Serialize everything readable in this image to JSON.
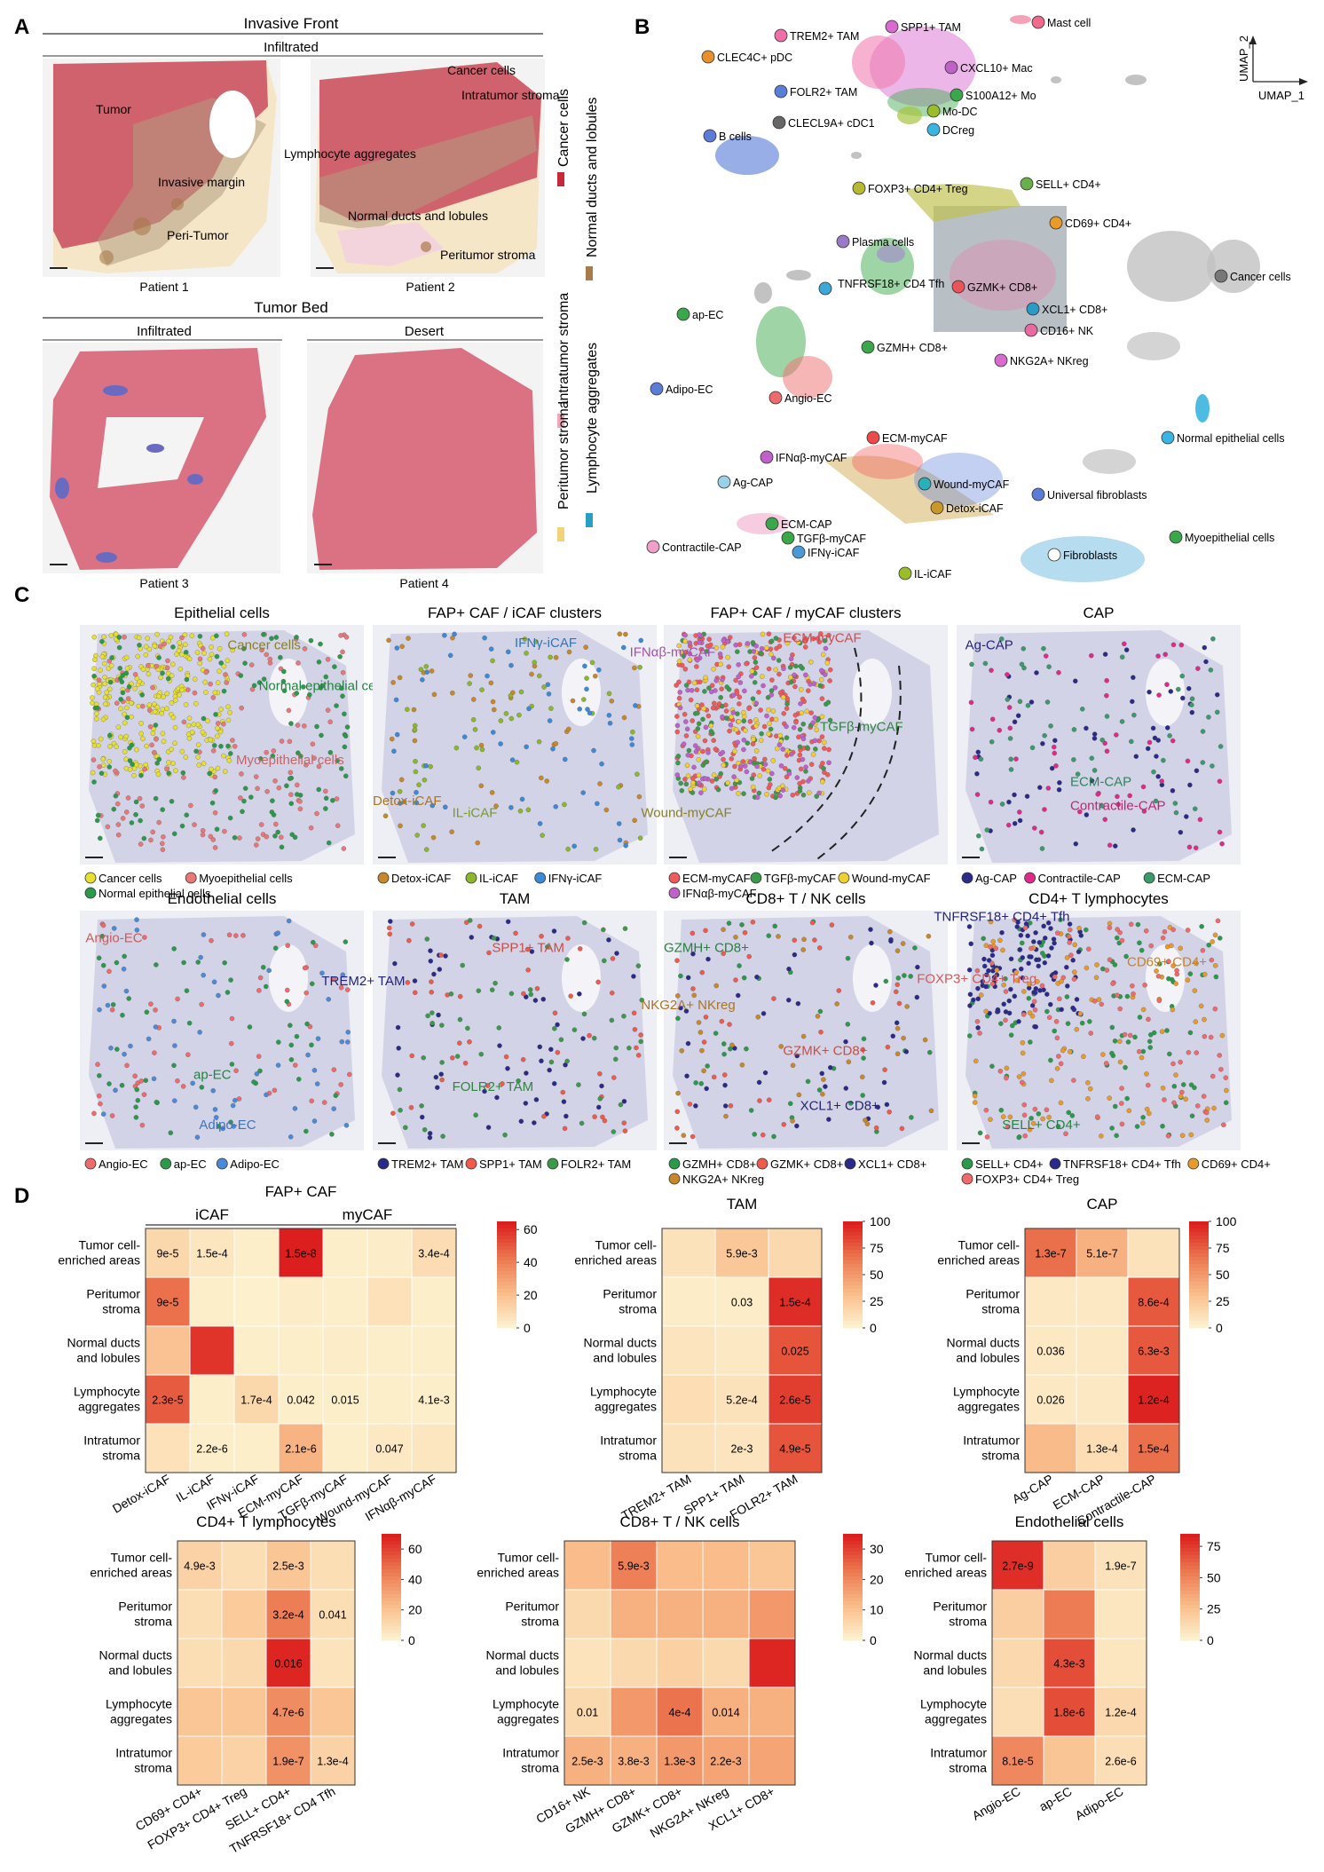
{
  "panel_letters": [
    "A",
    "B",
    "C",
    "D"
  ],
  "panelA": {
    "invasive_front": "Invasive Front",
    "infiltrated": "Infiltrated",
    "tumor_bed": "Tumor Bed",
    "tb_infiltrated": "Infiltrated",
    "desert": "Desert",
    "patients": [
      "Patient 1",
      "Patient 2",
      "Patient 3",
      "Patient 4"
    ],
    "annotations": [
      "Tumor",
      "Invasive margin",
      "Peri-Tumor",
      "Cancer cells",
      "Intratumor stroma",
      "Lymphocyte aggregates",
      "Normal ducts and lobules",
      "Peritumor stroma"
    ],
    "legend": [
      {
        "label": "Cancer cells",
        "color": "#c62a3a"
      },
      {
        "label": "Normal ducts and lobules",
        "color": "#a97a4b"
      },
      {
        "label": "Intratumor stroma",
        "color": "#f0a8b4"
      },
      {
        "label": "Lymphocyte aggregates",
        "color": "#2a9fc6"
      },
      {
        "label": "Peritumor stroma",
        "color": "#f2d27a"
      }
    ]
  },
  "panelB": {
    "axis_x": "UMAP_1",
    "axis_y": "UMAP_2",
    "labels": [
      {
        "text": "TREM2+ TAM",
        "color": "#ef6fa8"
      },
      {
        "text": "SPP1+ TAM",
        "color": "#d86ad0"
      },
      {
        "text": "Mast cell",
        "color": "#f06a8c"
      },
      {
        "text": "CLEC4C+ pDC",
        "color": "#e8902c"
      },
      {
        "text": "CXCL10+ Mac",
        "color": "#c061c9"
      },
      {
        "text": "FOLR2+ TAM",
        "color": "#5a7fd6"
      },
      {
        "text": "S100A12+ Mo",
        "color": "#3aa84a"
      },
      {
        "text": "Mo-DC",
        "color": "#9bbd2a"
      },
      {
        "text": "CLECL9A+ cDC1",
        "color": "#666666"
      },
      {
        "text": "DCreg",
        "color": "#3ab4e0"
      },
      {
        "text": "B cells",
        "color": "#5b7dd8"
      },
      {
        "text": "FOXP3+ CD4+ Treg",
        "color": "#b8b832"
      },
      {
        "text": "SELL+ CD4+",
        "color": "#6ab04a"
      },
      {
        "text": "CD69+ CD4+",
        "color": "#e89a2a"
      },
      {
        "text": "Plasma cells",
        "color": "#9a7ac8"
      },
      {
        "text": "TNFRSF18+ CD4 Tfh",
        "color": "#3aa8d8"
      },
      {
        "text": "GZMK+ CD8+",
        "color": "#e8545a"
      },
      {
        "text": "XCL1+ CD8+",
        "color": "#2a9ac8"
      },
      {
        "text": "CD16+ NK",
        "color": "#e86aa0"
      },
      {
        "text": "Cancer cells",
        "color": "#777777"
      },
      {
        "text": "ap-EC",
        "color": "#3aa84a"
      },
      {
        "text": "GZMH+ CD8+",
        "color": "#3aa84a"
      },
      {
        "text": "NKG2A+ NKreg",
        "color": "#d86ad0"
      },
      {
        "text": "Adipo-EC",
        "color": "#5b7dd8"
      },
      {
        "text": "Angio-EC",
        "color": "#ef6a6a"
      },
      {
        "text": "Normal epithelial cells",
        "color": "#3ab4e0"
      },
      {
        "text": "ECM-myCAF",
        "color": "#ef4a4a"
      },
      {
        "text": "IFNαβ-myCAF",
        "color": "#c061c9"
      },
      {
        "text": "Wound-myCAF",
        "color": "#2ab0b8"
      },
      {
        "text": "Ag-CAP",
        "color": "#9ad0e8"
      },
      {
        "text": "Universal fibroblasts",
        "color": "#5b7dd8"
      },
      {
        "text": "Detox-iCAF",
        "color": "#c8982a"
      },
      {
        "text": "ECM-CAP",
        "color": "#3aa84a"
      },
      {
        "text": "TGFβ-myCAF",
        "color": "#3aa84a"
      },
      {
        "text": "IFNγ-iCAF",
        "color": "#4a9ad8"
      },
      {
        "text": "Contractile-CAP",
        "color": "#f0a0c8"
      },
      {
        "text": "IL-iCAF",
        "color": "#9bbd2a"
      },
      {
        "text": "Fibroblasts",
        "color": "#ffffff"
      },
      {
        "text": "Myoepithelial cells",
        "color": "#3aa84a"
      }
    ]
  },
  "panelC": {
    "maps": [
      {
        "title": "Epithelial cells",
        "labels": [
          "Cancer cells",
          "Normal epithelial cells",
          "Myoepithelial cells"
        ],
        "legend": [
          {
            "label": "Cancer cells",
            "color": "#e8e030"
          },
          {
            "label": "Myoepithelial cells",
            "color": "#e87878"
          },
          {
            "label": "Normal epithelial cells",
            "color": "#2a9a4a"
          }
        ]
      },
      {
        "title": "FAP+ CAF / iCAF clusters",
        "labels": [
          "IFNγ-iCAF",
          "Detox-iCAF",
          "IL-iCAF"
        ],
        "legend": [
          {
            "label": "Detox-iCAF",
            "color": "#c8882a"
          },
          {
            "label": "IL-iCAF",
            "color": "#8ab82a"
          },
          {
            "label": "IFNγ-iCAF",
            "color": "#3a8ad8"
          }
        ]
      },
      {
        "title": "FAP+ CAF / myCAF clusters",
        "labels": [
          "ECM-myCAF",
          "IFNαβ-myCAF",
          "TGFβ-myCAF",
          "Wound-myCAF"
        ],
        "legend": [
          {
            "label": "ECM-myCAF",
            "color": "#ef5a5a"
          },
          {
            "label": "TGFβ-myCAF",
            "color": "#3a9a4a"
          },
          {
            "label": "Wound-myCAF",
            "color": "#f0d030"
          },
          {
            "label": "IFNαβ-myCAF",
            "color": "#c061c9"
          }
        ]
      },
      {
        "title": "CAP",
        "labels": [
          "Ag-CAP",
          "ECM-CAP",
          "Contractile-CAP"
        ],
        "legend": [
          {
            "label": "Ag-CAP",
            "color": "#2a2a8a"
          },
          {
            "label": "Contractile-CAP",
            "color": "#e02a8a"
          },
          {
            "label": "ECM-CAP",
            "color": "#3a9a6a"
          }
        ]
      },
      {
        "title": "Endothelial cells",
        "labels": [
          "Angio-EC",
          "ap-EC",
          "Adipo-EC"
        ],
        "legend": [
          {
            "label": "Angio-EC",
            "color": "#ef6a6a"
          },
          {
            "label": "ap-EC",
            "color": "#2a9a4a"
          },
          {
            "label": "Adipo-EC",
            "color": "#4a8ad8"
          }
        ]
      },
      {
        "title": "TAM",
        "labels": [
          "TREM2+ TAM",
          "SPP1+ TAM",
          "FOLR2+ TAM"
        ],
        "legend": [
          {
            "label": "TREM2+ TAM",
            "color": "#2a2a8a"
          },
          {
            "label": "SPP1+ TAM",
            "color": "#ef5a4a"
          },
          {
            "label": "FOLR2+ TAM",
            "color": "#3a9a4a"
          }
        ]
      },
      {
        "title": "CD8+ T / NK cells",
        "labels": [
          "GZMH+ CD8+",
          "NKG2A+ NKreg",
          "GZMK+ CD8+",
          "XCL1+ CD8+"
        ],
        "legend": [
          {
            "label": "GZMH+ CD8+",
            "color": "#2a9a4a"
          },
          {
            "label": "GZMK+ CD8+",
            "color": "#ef5a4a"
          },
          {
            "label": "XCL1+ CD8+",
            "color": "#2a2a8a"
          },
          {
            "label": "NKG2A+ NKreg",
            "color": "#c8882a"
          }
        ]
      },
      {
        "title": "CD4+ T lymphocytes",
        "labels": [
          "TNFRSF18+ CD4+ Tfh",
          "FOXP3+ CD4+ Treg",
          "CD69+ CD4+",
          "SELL+ CD4+"
        ],
        "legend": [
          {
            "label": "SELL+ CD4+",
            "color": "#2a9a4a"
          },
          {
            "label": "TNFRSF18+ CD4+ Tfh",
            "color": "#2a2a8a"
          },
          {
            "label": "CD69+ CD4+",
            "color": "#e89a2a"
          },
          {
            "label": "FOXP3+ CD4+ Treg",
            "color": "#ef6a6a"
          }
        ]
      }
    ]
  },
  "chart_data": [
    {
      "type": "heatmap",
      "title": "FAP+ CAF",
      "group_labels": [
        "iCAF",
        "myCAF"
      ],
      "rows": [
        "Tumor cell-enriched areas",
        "Peritumor stroma",
        "Normal ducts and lobules",
        "Lymphocyte aggregates",
        "Intratumor stroma"
      ],
      "columns": [
        "Detox-iCAF",
        "IL-iCAF",
        "IFNγ-iCAF",
        "ECM-myCAF",
        "TGFβ-myCAF",
        "Wound-myCAF",
        "IFNαβ-myCAF"
      ],
      "values": [
        [
          12,
          6,
          3,
          65,
          3,
          4,
          10
        ],
        [
          45,
          3,
          2,
          4,
          3,
          8,
          3
        ],
        [
          20,
          60,
          3,
          3,
          4,
          3,
          3
        ],
        [
          50,
          3,
          12,
          3,
          3,
          3,
          3
        ],
        [
          8,
          3,
          3,
          25,
          3,
          5,
          6
        ]
      ],
      "annotations": [
        [
          "9e-5",
          "1.5e-4",
          "",
          "1.5e-8",
          "",
          "",
          "3.4e-4"
        ],
        [
          "9e-5",
          "",
          "",
          "",
          "",
          "",
          ""
        ],
        [
          "",
          "",
          "",
          "",
          "",
          "",
          ""
        ],
        [
          "2.3e-5",
          "",
          "1.7e-4",
          "0.042",
          "0.015",
          "",
          "4.1e-3"
        ],
        [
          "",
          "2.2e-6",
          "",
          "2.1e-6",
          "",
          "0.047",
          ""
        ]
      ],
      "scale_ticks": [
        0,
        20,
        40,
        60
      ],
      "scale_max": 65
    },
    {
      "type": "heatmap",
      "title": "TAM",
      "rows": [
        "Tumor cell-enriched areas",
        "Peritumor stroma",
        "Normal ducts and lobules",
        "Lymphocyte aggregates",
        "Intratumor stroma"
      ],
      "columns": [
        "TREM2+ TAM",
        "SPP1+ TAM",
        "FOLR2+ TAM"
      ],
      "values": [
        [
          12,
          28,
          18
        ],
        [
          6,
          6,
          95
        ],
        [
          10,
          8,
          80
        ],
        [
          15,
          12,
          88
        ],
        [
          12,
          10,
          80
        ]
      ],
      "annotations": [
        [
          "",
          "5.9e-3",
          ""
        ],
        [
          "",
          "0.03",
          "1.5e-4"
        ],
        [
          "",
          "",
          "0.025"
        ],
        [
          "",
          "5.2e-4",
          "2.6e-5"
        ],
        [
          "",
          "2e-3",
          "4.9e-5"
        ]
      ],
      "scale_ticks": [
        0,
        25,
        50,
        75,
        100
      ],
      "scale_max": 100
    },
    {
      "type": "heatmap",
      "title": "CAP",
      "rows": [
        "Tumor cell-enriched areas",
        "Peritumor stroma",
        "Normal ducts and lobules",
        "Lymphocyte aggregates",
        "Intratumor stroma"
      ],
      "columns": [
        "Ag-CAP",
        "ECM-CAP",
        "Contractile-CAP"
      ],
      "values": [
        [
          70,
          40,
          12
        ],
        [
          8,
          8,
          78
        ],
        [
          8,
          8,
          78
        ],
        [
          8,
          8,
          98
        ],
        [
          35,
          15,
          70
        ]
      ],
      "annotations": [
        [
          "1.3e-7",
          "5.1e-7",
          ""
        ],
        [
          "",
          "",
          "8.6e-4"
        ],
        [
          "0.036",
          "",
          "6.3e-3"
        ],
        [
          "0.026",
          "",
          "1.2e-4"
        ],
        [
          "",
          "1.3e-4",
          "1.5e-4"
        ]
      ],
      "scale_ticks": [
        0,
        25,
        50,
        75,
        100
      ],
      "scale_max": 100
    },
    {
      "type": "heatmap",
      "title": "CD4+ T lymphocytes",
      "rows": [
        "Tumor cell-enriched areas",
        "Peritumor stroma",
        "Normal ducts and lobules",
        "Lymphocyte aggregates",
        "Intratumor stroma"
      ],
      "columns": [
        "CD69+ CD4+",
        "FOXP3+ CD4+ Treg",
        "SELL+ CD4+",
        "TNFRSF18+ CD4 Tfh"
      ],
      "values": [
        [
          15,
          10,
          20,
          10
        ],
        [
          10,
          18,
          45,
          10
        ],
        [
          10,
          12,
          68,
          8
        ],
        [
          20,
          20,
          40,
          20
        ],
        [
          18,
          15,
          38,
          15
        ]
      ],
      "annotations": [
        [
          "4.9e-3",
          "",
          "2.5e-3",
          ""
        ],
        [
          "",
          "",
          "3.2e-4",
          "0.041"
        ],
        [
          "",
          "",
          "0.016",
          ""
        ],
        [
          "",
          "",
          "4.7e-6",
          ""
        ],
        [
          "",
          "",
          "1.9e-7",
          "1.3e-4"
        ]
      ],
      "scale_ticks": [
        0,
        20,
        40,
        60
      ],
      "scale_max": 70
    },
    {
      "type": "heatmap",
      "title": "CD8+ T / NK cells",
      "rows": [
        "Tumor cell-enriched areas",
        "Peritumor stroma",
        "Normal ducts and lobules",
        "Lymphocyte aggregates",
        "Intratumor stroma"
      ],
      "columns": [
        "CD16+ NK",
        "GZMH+ CD8+",
        "GZMK+ CD8+",
        "NKG2A+ NKreg",
        "XCL1+ CD8+"
      ],
      "values": [
        [
          12,
          22,
          12,
          12,
          10
        ],
        [
          6,
          14,
          14,
          14,
          18
        ],
        [
          4,
          6,
          8,
          6,
          34
        ],
        [
          6,
          18,
          24,
          14,
          14
        ],
        [
          14,
          14,
          18,
          16,
          16
        ]
      ],
      "annotations": [
        [
          "",
          "5.9e-3",
          "",
          "",
          ""
        ],
        [
          "",
          "",
          "",
          "",
          ""
        ],
        [
          "",
          "",
          "",
          "",
          ""
        ],
        [
          "0.01",
          "",
          "4e-4",
          "0.014",
          ""
        ],
        [
          "2.5e-3",
          "3.8e-3",
          "1.3e-3",
          "2.2e-3",
          ""
        ]
      ],
      "scale_ticks": [
        0,
        10,
        20,
        30
      ],
      "scale_max": 35
    },
    {
      "type": "heatmap",
      "title": "Endothelial cells",
      "rows": [
        "Tumor cell-enriched areas",
        "Peritumor stroma",
        "Normal ducts and lobules",
        "Lymphocyte aggregates",
        "Intratumor stroma"
      ],
      "columns": [
        "Angio-EC",
        "ap-EC",
        "Adipo-EC"
      ],
      "values": [
        [
          80,
          20,
          10
        ],
        [
          20,
          55,
          8
        ],
        [
          15,
          70,
          8
        ],
        [
          12,
          70,
          15
        ],
        [
          50,
          25,
          12
        ]
      ],
      "annotations": [
        [
          "2.7e-9",
          "",
          "1.9e-7"
        ],
        [
          "",
          "",
          ""
        ],
        [
          "",
          "4.3e-3",
          ""
        ],
        [
          "",
          "1.8e-6",
          "1.2e-4"
        ],
        [
          "8.1e-5",
          "",
          "2.6e-6"
        ]
      ],
      "scale_ticks": [
        0,
        25,
        50,
        75
      ],
      "scale_max": 85
    }
  ]
}
